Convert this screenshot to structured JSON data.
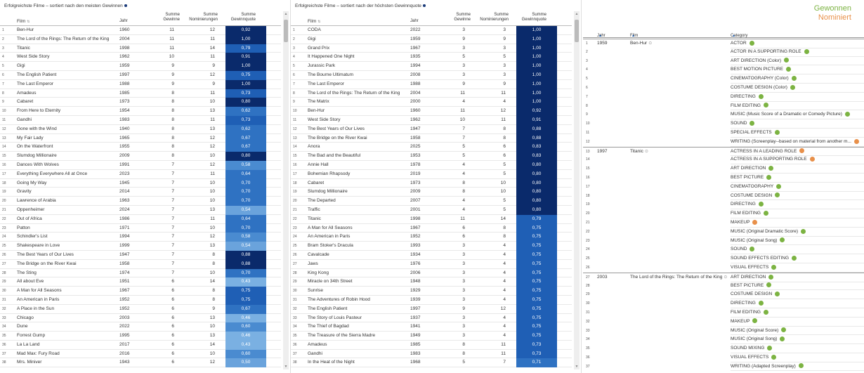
{
  "panel1": {
    "title": "Erfolgreichste Filme – sortiert nach den meisten Gewinnen",
    "headers": {
      "film": "Film",
      "year": "Jahr",
      "won": "Summe Gewinne",
      "nom": "Summe Nominierungen",
      "quota": "Summe Gewinnquote"
    },
    "rows": [
      [
        "Ben-Hur",
        "1960",
        "11",
        "12",
        "0,92"
      ],
      [
        "The Lord of the Rings: The Return of the King",
        "2004",
        "11",
        "11",
        "1,00"
      ],
      [
        "Titanic",
        "1998",
        "11",
        "14",
        "0,79"
      ],
      [
        "West Side Story",
        "1962",
        "10",
        "11",
        "0,91"
      ],
      [
        "Gigi",
        "1959",
        "9",
        "9",
        "1,00"
      ],
      [
        "The English Patient",
        "1997",
        "9",
        "12",
        "0,75"
      ],
      [
        "The Last Emperor",
        "1988",
        "9",
        "9",
        "1,00"
      ],
      [
        "Amadeus",
        "1985",
        "8",
        "11",
        "0,73"
      ],
      [
        "Cabaret",
        "1973",
        "8",
        "10",
        "0,80"
      ],
      [
        "From Here to Eternity",
        "1954",
        "8",
        "13",
        "0,62"
      ],
      [
        "Gandhi",
        "1983",
        "8",
        "11",
        "0,73"
      ],
      [
        "Gone with the Wind",
        "1940",
        "8",
        "13",
        "0,62"
      ],
      [
        "My Fair Lady",
        "1965",
        "8",
        "12",
        "0,67"
      ],
      [
        "On the Waterfront",
        "1955",
        "8",
        "12",
        "0,67"
      ],
      [
        "Slumdog Millionaire",
        "2009",
        "8",
        "10",
        "0,80"
      ],
      [
        "Dances With Wolves",
        "1991",
        "7",
        "12",
        "0,58"
      ],
      [
        "Everything Everywhere All at Once",
        "2023",
        "7",
        "11",
        "0,64"
      ],
      [
        "Going My Way",
        "1945",
        "7",
        "10",
        "0,70"
      ],
      [
        "Gravity",
        "2014",
        "7",
        "10",
        "0,70"
      ],
      [
        "Lawrence of Arabia",
        "1963",
        "7",
        "10",
        "0,70"
      ],
      [
        "Oppenheimer",
        "2024",
        "7",
        "13",
        "0,54"
      ],
      [
        "Out of Africa",
        "1986",
        "7",
        "11",
        "0,64"
      ],
      [
        "Patton",
        "1971",
        "7",
        "10",
        "0,70"
      ],
      [
        "Schindler's List",
        "1994",
        "7",
        "12",
        "0,58"
      ],
      [
        "Shakespeare in Love",
        "1999",
        "7",
        "13",
        "0,54"
      ],
      [
        "The Best Years of Our Lives",
        "1947",
        "7",
        "8",
        "0,88"
      ],
      [
        "The Bridge on the River Kwai",
        "1958",
        "7",
        "8",
        "0,88"
      ],
      [
        "The Sting",
        "1974",
        "7",
        "10",
        "0,70"
      ],
      [
        "All about Eve",
        "1951",
        "6",
        "14",
        "0,43"
      ],
      [
        "A Man for All Seasons",
        "1967",
        "6",
        "8",
        "0,75"
      ],
      [
        "An American in Paris",
        "1952",
        "6",
        "8",
        "0,75"
      ],
      [
        "A Place in the Sun",
        "1952",
        "6",
        "9",
        "0,67"
      ],
      [
        "Chicago",
        "2003",
        "6",
        "13",
        "0,46"
      ],
      [
        "Dune",
        "2022",
        "6",
        "10",
        "0,60"
      ],
      [
        "Forrest Gump",
        "1995",
        "6",
        "13",
        "0,46"
      ],
      [
        "La La Land",
        "2017",
        "6",
        "14",
        "0,43"
      ],
      [
        "Mad Max: Fury Road",
        "2016",
        "6",
        "10",
        "0,60"
      ],
      [
        "Mrs. Miniver",
        "1943",
        "6",
        "12",
        "0,50"
      ]
    ]
  },
  "panel2": {
    "title": "Erfolgreichste Filme – sortiert nach der höchsten Gewinnquote",
    "headers": {
      "film": "Film",
      "year": "Jahr",
      "won": "Summe Gewinne",
      "nom": "Summe Nominierungen",
      "quota": "Summe Gewinnquote"
    },
    "rows": [
      [
        "CODA",
        "2022",
        "3",
        "3",
        "1,00"
      ],
      [
        "Gigi",
        "1959",
        "9",
        "9",
        "1,00"
      ],
      [
        "Grand Prix",
        "1967",
        "3",
        "3",
        "1,00"
      ],
      [
        "It Happened One Night",
        "1935",
        "5",
        "5",
        "1,00"
      ],
      [
        "Jurassic Park",
        "1994",
        "3",
        "3",
        "1,00"
      ],
      [
        "The Bourne Ultimatum",
        "2008",
        "3",
        "3",
        "1,00"
      ],
      [
        "The Last Emperor",
        "1988",
        "9",
        "9",
        "1,00"
      ],
      [
        "The Lord of the Rings: The Return of the King",
        "2004",
        "11",
        "11",
        "1,00"
      ],
      [
        "The Matrix",
        "2000",
        "4",
        "4",
        "1,00"
      ],
      [
        "Ben-Hur",
        "1960",
        "11",
        "12",
        "0,92"
      ],
      [
        "West Side Story",
        "1962",
        "10",
        "11",
        "0,91"
      ],
      [
        "The Best Years of Our Lives",
        "1947",
        "7",
        "8",
        "0,88"
      ],
      [
        "The Bridge on the River Kwai",
        "1958",
        "7",
        "8",
        "0,88"
      ],
      [
        "Anora",
        "2025",
        "5",
        "6",
        "0,83"
      ],
      [
        "The Bad and the Beautiful",
        "1953",
        "5",
        "6",
        "0,83"
      ],
      [
        "Annie Hall",
        "1978",
        "4",
        "5",
        "0,80"
      ],
      [
        "Bohemian Rhapsody",
        "2019",
        "4",
        "5",
        "0,80"
      ],
      [
        "Cabaret",
        "1973",
        "8",
        "10",
        "0,80"
      ],
      [
        "Slumdog Millionaire",
        "2009",
        "8",
        "10",
        "0,80"
      ],
      [
        "The Departed",
        "2007",
        "4",
        "5",
        "0,80"
      ],
      [
        "Traffic",
        "2001",
        "4",
        "5",
        "0,80"
      ],
      [
        "Titanic",
        "1998",
        "11",
        "14",
        "0,79"
      ],
      [
        "A Man for All Seasons",
        "1967",
        "6",
        "8",
        "0,75"
      ],
      [
        "An American in Paris",
        "1952",
        "6",
        "8",
        "0,75"
      ],
      [
        "Bram Stoker's Dracula",
        "1993",
        "3",
        "4",
        "0,75"
      ],
      [
        "Cavalcade",
        "1934",
        "3",
        "4",
        "0,75"
      ],
      [
        "Jaws",
        "1976",
        "3",
        "4",
        "0,75"
      ],
      [
        "King Kong",
        "2006",
        "3",
        "4",
        "0,75"
      ],
      [
        "Miracle on 34th Street",
        "1948",
        "3",
        "4",
        "0,75"
      ],
      [
        "Sunrise",
        "1929",
        "3",
        "4",
        "0,75"
      ],
      [
        "The Adventures of Robin Hood",
        "1939",
        "3",
        "4",
        "0,75"
      ],
      [
        "The English Patient",
        "1997",
        "9",
        "12",
        "0,75"
      ],
      [
        "The Story of Louis Pasteur",
        "1937",
        "3",
        "4",
        "0,75"
      ],
      [
        "The Thief of Bagdad",
        "1941",
        "3",
        "4",
        "0,75"
      ],
      [
        "The Treasure of the Sierra Madre",
        "1949",
        "3",
        "4",
        "0,75"
      ],
      [
        "Amadeus",
        "1985",
        "8",
        "11",
        "0,73"
      ],
      [
        "Gandhi",
        "1983",
        "8",
        "11",
        "0,73"
      ],
      [
        "In the Heat of the Night",
        "1968",
        "5",
        "7",
        "0,71"
      ]
    ]
  },
  "panel3": {
    "legend": {
      "won": "Gewonnen",
      "nom": "Nominiert"
    },
    "headers": {
      "year": "Jahr",
      "film": "Film",
      "cat": "Category"
    },
    "colors": {
      "won": "#7cb342",
      "nom": "#e8904a"
    },
    "rows": [
      [
        "1959",
        "Ben-Hur",
        "ACTOR",
        "g"
      ],
      [
        "",
        "",
        "ACTOR IN A SUPPORTING ROLE",
        "g"
      ],
      [
        "",
        "",
        "ART DIRECTION (Color)",
        "g"
      ],
      [
        "",
        "",
        "BEST MOTION PICTURE",
        "g"
      ],
      [
        "",
        "",
        "CINEMATOGRAPHY (Color)",
        "g"
      ],
      [
        "",
        "",
        "COSTUME DESIGN (Color)",
        "g"
      ],
      [
        "",
        "",
        "DIRECTING",
        "g"
      ],
      [
        "",
        "",
        "FILM EDITING",
        "g"
      ],
      [
        "",
        "",
        "MUSIC (Music Score of a Dramatic or Comedy Picture)",
        "g"
      ],
      [
        "",
        "",
        "SOUND",
        "g"
      ],
      [
        "",
        "",
        "SPECIAL EFFECTS",
        "g"
      ],
      [
        "",
        "",
        "WRITING (Screenplay--based on material from another m...",
        "o"
      ],
      [
        "1997",
        "Titanic",
        "ACTRESS IN A LEADING ROLE",
        "o"
      ],
      [
        "",
        "",
        "ACTRESS IN A SUPPORTING ROLE",
        "o"
      ],
      [
        "",
        "",
        "ART DIRECTION",
        "g"
      ],
      [
        "",
        "",
        "BEST PICTURE",
        "g"
      ],
      [
        "",
        "",
        "CINEMATOGRAPHY",
        "g"
      ],
      [
        "",
        "",
        "COSTUME DESIGN",
        "g"
      ],
      [
        "",
        "",
        "DIRECTING",
        "g"
      ],
      [
        "",
        "",
        "FILM EDITING",
        "g"
      ],
      [
        "",
        "",
        "MAKEUP",
        "o"
      ],
      [
        "",
        "",
        "MUSIC (Original Dramatic Score)",
        "g"
      ],
      [
        "",
        "",
        "MUSIC (Original Song)",
        "g"
      ],
      [
        "",
        "",
        "SOUND",
        "g"
      ],
      [
        "",
        "",
        "SOUND EFFECTS EDITING",
        "g"
      ],
      [
        "",
        "",
        "VISUAL EFFECTS",
        "g"
      ],
      [
        "2003",
        "The Lord of the Rings: The Return of the King",
        "ART DIRECTION",
        "g"
      ],
      [
        "",
        "",
        "BEST PICTURE",
        "g"
      ],
      [
        "",
        "",
        "COSTUME DESIGN",
        "g"
      ],
      [
        "",
        "",
        "DIRECTING",
        "g"
      ],
      [
        "",
        "",
        "FILM EDITING",
        "g"
      ],
      [
        "",
        "",
        "MAKEUP",
        "g"
      ],
      [
        "",
        "",
        "MUSIC (Original Score)",
        "g"
      ],
      [
        "",
        "",
        "MUSIC (Original Song)",
        "g"
      ],
      [
        "",
        "",
        "SOUND MIXING",
        "g"
      ],
      [
        "",
        "",
        "VISUAL EFFECTS",
        "g"
      ],
      [
        "",
        "",
        "WRITING (Adapted Screenplay)",
        "g"
      ]
    ]
  }
}
